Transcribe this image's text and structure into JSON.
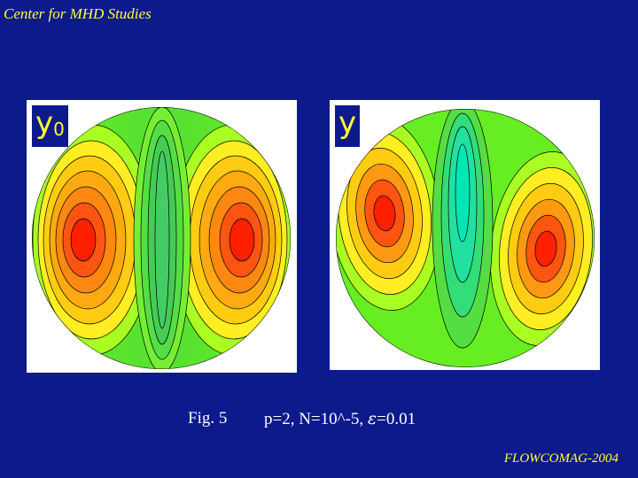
{
  "header": {
    "title": "Center for MHD Studies"
  },
  "footer": {
    "label": "FLOWCOMAG-2004"
  },
  "panels": [
    {
      "label": "y",
      "subscript": "0"
    },
    {
      "label": "y",
      "subscript": ""
    }
  ],
  "caption": {
    "fig": "Fig. 5",
    "params_prefix": "p=2, N=10^-5, ",
    "params_suffix": "=0.01"
  },
  "colors": {
    "background": "#0d1a8c",
    "title_text": "#ffff33",
    "contour_high": "#ff2000",
    "contour_low": "#00e6b4"
  }
}
